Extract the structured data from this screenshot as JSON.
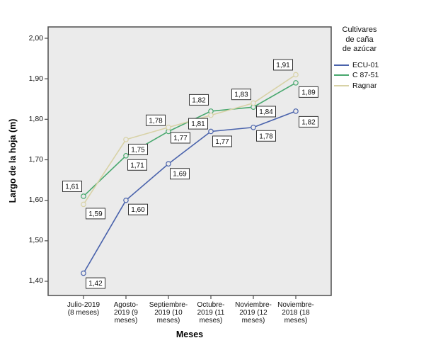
{
  "figure": {
    "background": "#ffffff",
    "plot_background": "#ebebeb",
    "frame_color": "#4d4d4d"
  },
  "chart_data": {
    "type": "line",
    "title": "",
    "xlabel": "Meses",
    "ylabel": "Largo de la hoja (m)",
    "categories": [
      "Julio-2019 (8 meses)",
      "Agosto-2019 (9 meses)",
      "Septiembre-2019 (10 meses)",
      "Octubre-2019 (11 meses)",
      "Noviembre-2019 (12 meses)",
      "Noviembre-2018 (18 meses)"
    ],
    "category_tick_lines": [
      [
        "Julio-2019",
        "(8 meses)"
      ],
      [
        "Agosto-",
        "2019 (9",
        "meses)"
      ],
      [
        "Septiembre-",
        "2019 (10",
        "meses)"
      ],
      [
        "Octubre-",
        "2019 (11",
        "meses)"
      ],
      [
        "Noviembre-",
        "2019 (12",
        "meses)"
      ],
      [
        "Noviembre-",
        "2018 (18",
        "meses)"
      ]
    ],
    "y_ticks": [
      "2,00",
      "1,90",
      "1,80",
      "1,70",
      "1,60",
      "1,50",
      "1,40"
    ],
    "y_tick_values": [
      2.0,
      1.9,
      1.8,
      1.7,
      1.6,
      1.5,
      1.4
    ],
    "ylim": [
      1.365,
      2.028
    ],
    "grid": false,
    "marker": "open-circle",
    "legend": {
      "title": "Cultivares\nde caña\nde azúcar",
      "position": "right",
      "entries": [
        {
          "name": "ECU-01",
          "color": "#4a63ac"
        },
        {
          "name": "C 87-51",
          "color": "#48a86e"
        },
        {
          "name": "Ragnar",
          "color": "#d8d2a6"
        }
      ]
    },
    "value_label_box": {
      "fill": "#ffffff",
      "border": "#333333"
    },
    "series": [
      {
        "name": "ECU-01",
        "color": "#4a63ac",
        "values": [
          1.42,
          1.6,
          1.69,
          1.77,
          1.78,
          1.82
        ],
        "labels": [
          "1,42",
          "1,60",
          "1,69",
          "1,77",
          "1,78",
          "1,82"
        ],
        "label_offsets": [
          [
            17,
            14
          ],
          [
            17,
            13
          ],
          [
            16,
            14
          ],
          [
            16,
            14
          ],
          [
            18,
            12
          ],
          [
            18,
            15
          ]
        ]
      },
      {
        "name": "C 87-51",
        "color": "#48a86e",
        "values": [
          1.61,
          1.71,
          1.77,
          1.82,
          1.83,
          1.89
        ],
        "labels": [
          "1,61",
          "1,71",
          "1,77",
          "1,82",
          "1,83",
          "1,89"
        ],
        "label_offsets": [
          [
            -16,
            -14
          ],
          [
            16,
            13
          ],
          [
            17,
            9
          ],
          [
            -17,
            -16
          ],
          [
            -17,
            -18
          ],
          [
            18,
            13
          ]
        ]
      },
      {
        "name": "Ragnar",
        "color": "#d8d2a6",
        "values": [
          1.59,
          1.75,
          1.78,
          1.81,
          1.84,
          1.91
        ],
        "labels": [
          "1,59",
          "1,75",
          "1,78",
          "1,81",
          "1,84",
          "1,91"
        ],
        "label_offsets": [
          [
            17,
            13
          ],
          [
            17,
            14
          ],
          [
            -18,
            -10
          ],
          [
            -18,
            12
          ],
          [
            18,
            12
          ],
          [
            -18,
            -14
          ]
        ]
      }
    ]
  }
}
